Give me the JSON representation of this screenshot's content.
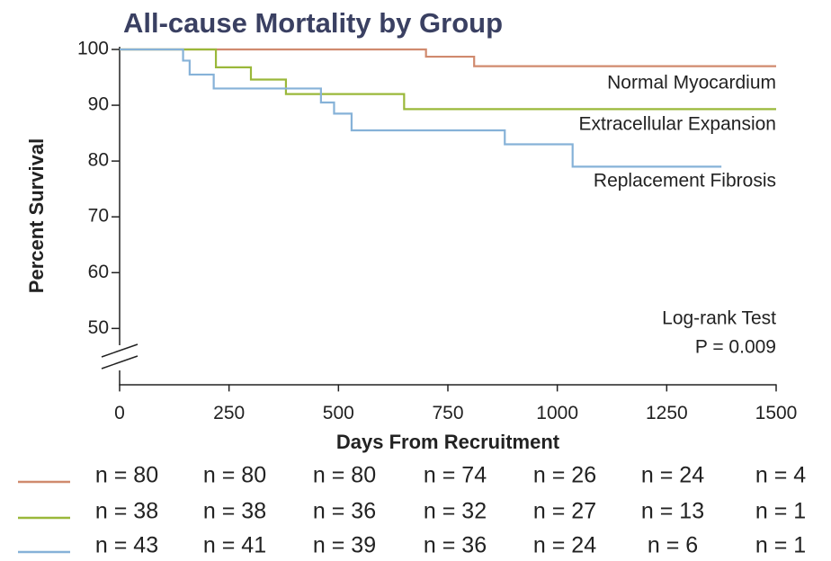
{
  "chart_data": {
    "type": "step",
    "title": "All-cause Mortality by Group",
    "x_label": "Days From Recruitment",
    "y_label": "Percent Survival",
    "xlim": [
      0,
      1500
    ],
    "xticks": [
      0,
      250,
      500,
      750,
      1000,
      1250,
      1500
    ],
    "ylim": [
      40,
      100
    ],
    "yticks": [
      50,
      60,
      70,
      80,
      90,
      100
    ],
    "series": [
      {
        "name": "Normal Myocardium",
        "color": "#d08a6e",
        "x": [
          0,
          700,
          810,
          1500
        ],
        "values": [
          100,
          98.7,
          97,
          97
        ]
      },
      {
        "name": "Extracellular Expansion",
        "color": "#9ab83a",
        "x": [
          0,
          220,
          300,
          380,
          650,
          1500
        ],
        "values": [
          100,
          96.8,
          94.6,
          92,
          89.3,
          89.3
        ]
      },
      {
        "name": "Replacement Fibrosis",
        "color": "#86b2d8",
        "x": [
          0,
          145,
          160,
          215,
          460,
          490,
          530,
          880,
          1035,
          1375
        ],
        "values": [
          100,
          98,
          95.5,
          93,
          90.5,
          88.5,
          85.5,
          83,
          79,
          79
        ]
      }
    ],
    "annotations": [
      "Log-rank Test",
      "P = 0.009"
    ],
    "at_risk": [
      [
        "n = 80",
        "n = 80",
        "n = 80",
        "n = 74",
        "n = 26",
        "n = 24",
        "n = 4"
      ],
      [
        "n = 38",
        "n = 38",
        "n = 36",
        "n = 32",
        "n = 27",
        "n = 13",
        "n = 1"
      ],
      [
        "n = 43",
        "n = 41",
        "n = 39",
        "n = 36",
        "n = 24",
        "n = 6",
        "n = 1"
      ]
    ]
  }
}
